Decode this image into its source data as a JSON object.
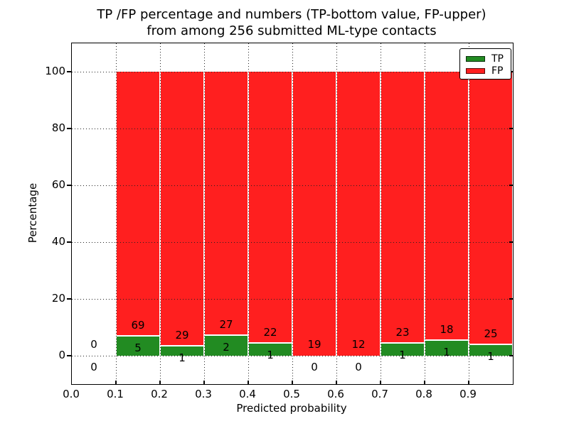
{
  "title": {
    "line1": "TP /FP percentage and numbers (TP-bottom value, FP-upper)",
    "line2": "from among 256 submitted ML-type contacts"
  },
  "axes": {
    "xlabel": "Predicted probability",
    "ylabel": "Percentage",
    "xlim": [
      0.0,
      1.0
    ],
    "ylim": [
      -10,
      110
    ],
    "xtick_labels": [
      "0.0",
      "0.1",
      "0.2",
      "0.3",
      "0.4",
      "0.5",
      "0.6",
      "0.7",
      "0.8",
      "0.9"
    ],
    "ytick_values": [
      0,
      20,
      40,
      60,
      80,
      100
    ],
    "grid": "dotted"
  },
  "legend": {
    "position": "upper-right",
    "items": [
      {
        "label": "TP",
        "color": "#228b22"
      },
      {
        "label": "FP",
        "color": "#ff1f1f"
      }
    ]
  },
  "colors": {
    "tp": "#228b22",
    "fp": "#ff1f1f",
    "bar_edge": "#ffffff",
    "grid": "#222222",
    "frame": "#000000",
    "background": "#ffffff",
    "text": "#000000"
  },
  "chart_data": {
    "type": "bar",
    "stacked": true,
    "percent_normalized": true,
    "title": "TP /FP percentage and numbers (TP-bottom value, FP-upper) from among 256 submitted ML-type contacts",
    "xlabel": "Predicted probability",
    "ylabel": "Percentage",
    "ylim": [
      -10,
      110
    ],
    "xlim": [
      0,
      1
    ],
    "bin_width": 0.1,
    "total_contacts": 256,
    "series": [
      {
        "name": "TP",
        "color": "#228b22",
        "counts": [
          0,
          5,
          1,
          2,
          1,
          0,
          0,
          1,
          1,
          1
        ]
      },
      {
        "name": "FP",
        "color": "#ff1f1f",
        "counts": [
          0,
          69,
          29,
          27,
          22,
          19,
          12,
          23,
          18,
          25
        ]
      }
    ],
    "bins": [
      {
        "x0": 0.0,
        "tp": 0,
        "fp": 0
      },
      {
        "x0": 0.1,
        "tp": 5,
        "fp": 69
      },
      {
        "x0": 0.2,
        "tp": 1,
        "fp": 29
      },
      {
        "x0": 0.3,
        "tp": 2,
        "fp": 27
      },
      {
        "x0": 0.4,
        "tp": 1,
        "fp": 22
      },
      {
        "x0": 0.5,
        "tp": 0,
        "fp": 19
      },
      {
        "x0": 0.6,
        "tp": 0,
        "fp": 12
      },
      {
        "x0": 0.7,
        "tp": 1,
        "fp": 23
      },
      {
        "x0": 0.8,
        "tp": 1,
        "fp": 18
      },
      {
        "x0": 0.9,
        "tp": 1,
        "fp": 25
      }
    ]
  }
}
